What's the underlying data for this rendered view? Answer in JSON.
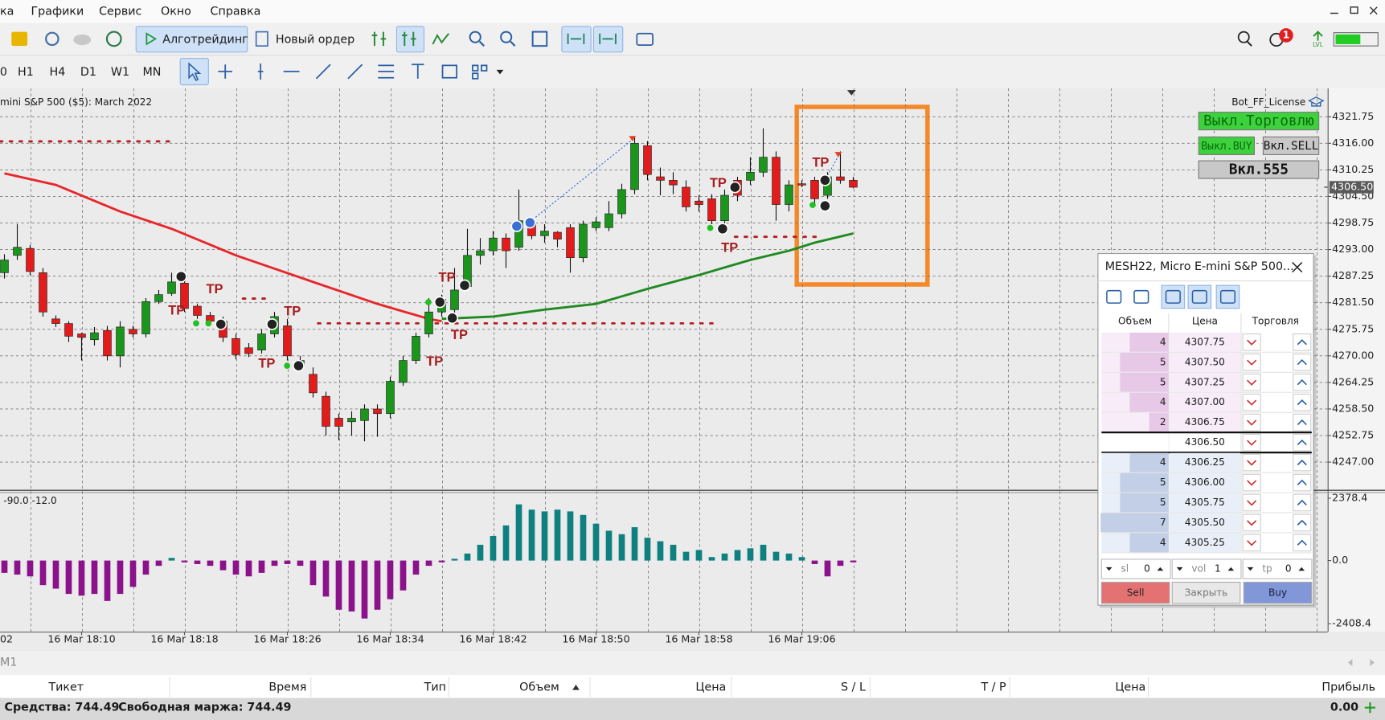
{
  "menu": [
    "ка",
    "Графики",
    "Сервис",
    "Окно",
    "Справка"
  ],
  "toolbar": {
    "algo": "Алготрейдинг",
    "new_order": "Новый ордер",
    "badge": "1",
    "lvl": "LVL"
  },
  "timeframes": [
    "0",
    "H1",
    "H4",
    "D1",
    "W1",
    "MN"
  ],
  "chart": {
    "type": "candlestick",
    "symbol": "mini S&P 500 ($5): March 2022",
    "ylim": [
      4240.9,
      4327.9
    ],
    "yticks": [
      4321.75,
      {
        "value": 4316,
        "label": "4316.00"
      },
      4310.25,
      {
        "value": 4304.5,
        "label": "4304.50"
      },
      4298.75,
      {
        "value": 4293,
        "label": "4293.00"
      },
      4287.25,
      {
        "value": 4281.5,
        "label": "4281.50"
      },
      4275.75,
      {
        "value": 4270,
        "label": "4270.00"
      },
      4264.25,
      {
        "value": 4258.5,
        "label": "4258.50"
      },
      4252.75,
      {
        "value": 4247,
        "label": "4247.00"
      }
    ],
    "current_price": {
      "value": 4306.5,
      "label": "4306.50"
    },
    "time_labels": [
      "02",
      "16 Mar 18:10",
      "16 Mar 18:18",
      "16 Mar 18:26",
      "16 Mar 18:34",
      "16 Mar 18:42",
      "16 Mar 18:50",
      "16 Mar 18:58",
      "16 Mar 19:06"
    ],
    "up_color": "#1a961a",
    "down_color": "#e31b1b",
    "candles": [
      [
        4288.0,
        4292.0,
        4286.75,
        4290.75
      ],
      [
        4291.75,
        4298.5,
        4290.75,
        4293.5
      ],
      [
        4293.25,
        4294.0,
        4287.5,
        4288.25
      ],
      [
        4288.0,
        4289.0,
        4278.5,
        4279.5
      ],
      [
        4278.0,
        4278.75,
        4276.25,
        4277.0
      ],
      [
        4277.0,
        4277.5,
        4273.0,
        4274.25
      ],
      [
        4274.75,
        4275.0,
        4269.0,
        4274.0
      ],
      [
        4273.5,
        4276.25,
        4272.25,
        4275.0
      ],
      [
        4275.5,
        4276.5,
        4269.0,
        4270.0
      ],
      [
        4270.0,
        4277.5,
        4267.5,
        4276.25
      ],
      [
        4275.75,
        4276.5,
        4274.0,
        4274.75
      ],
      [
        4274.75,
        4282.5,
        4274.0,
        4281.75
      ],
      [
        4281.75,
        4284.25,
        4281.25,
        4283.25
      ],
      [
        4283.5,
        4288.0,
        4283.0,
        4286.0
      ],
      [
        4285.75,
        4286.5,
        4279.5,
        4280.25
      ],
      [
        4280.75,
        4281.25,
        4278.0,
        4278.75
      ],
      [
        4278.75,
        4279.5,
        4276.5,
        4277.5
      ],
      [
        4277.5,
        4278.5,
        4273.0,
        4274.0
      ],
      [
        4273.75,
        4274.75,
        4269.25,
        4270.25
      ],
      [
        4271.75,
        4272.75,
        4269.75,
        4270.5
      ],
      [
        4271.25,
        4275.75,
        4270.5,
        4274.75
      ],
      [
        4274.75,
        4279.5,
        4274.0,
        4278.5
      ],
      [
        4276.5,
        4278.0,
        4269.0,
        4270.0
      ],
      [
        4267.75,
        4270.0,
        4266.75,
        4269.0
      ],
      [
        4266.0,
        4267.5,
        4261.0,
        4262.0
      ],
      [
        4261.25,
        4262.25,
        4252.75,
        4254.75
      ],
      [
        4256.5,
        4257.5,
        4251.75,
        4254.75
      ],
      [
        4255.75,
        4258.0,
        4252.75,
        4256.5
      ],
      [
        4256.0,
        4259.5,
        4251.5,
        4258.5
      ],
      [
        4258.5,
        4259.5,
        4252.5,
        4257.5
      ],
      [
        4257.5,
        4265.5,
        4256.5,
        4264.5
      ],
      [
        4264.25,
        4270.0,
        4263.5,
        4269.0
      ],
      [
        4269.0,
        4275.0,
        4268.25,
        4274.25
      ],
      [
        4274.75,
        4282.5,
        4274.0,
        4279.5
      ],
      [
        4279.5,
        4283.25,
        4278.5,
        4282.25
      ],
      [
        4280.0,
        4289.0,
        4277.0,
        4284.25
      ],
      [
        4285.0,
        4297.5,
        4284.25,
        4291.75
      ],
      [
        4291.75,
        4295.5,
        4289.75,
        4292.75
      ],
      [
        4292.75,
        4297.0,
        4291.75,
        4295.5
      ],
      [
        4295.5,
        4296.5,
        4289.0,
        4292.75
      ],
      [
        4293.5,
        4306.0,
        4292.75,
        4299.25
      ],
      [
        4298.5,
        4299.75,
        4295.25,
        4296.0
      ],
      [
        4296.0,
        4298.5,
        4294.5,
        4297.0
      ],
      [
        4296.75,
        4297.0,
        4293.5,
        4295.25
      ],
      [
        4297.75,
        4298.5,
        4288.0,
        4291.25
      ],
      [
        4291.25,
        4299.25,
        4290.25,
        4298.5
      ],
      [
        4297.75,
        4300.0,
        4297.0,
        4299.0
      ],
      [
        4297.75,
        4303.5,
        4297.0,
        4300.75
      ],
      [
        4300.75,
        4307.25,
        4299.75,
        4306.0
      ],
      [
        4306.0,
        4317.5,
        4305.0,
        4316.0
      ],
      [
        4315.5,
        4316.5,
        4308.0,
        4309.25
      ],
      [
        4308.75,
        4310.75,
        4304.75,
        4308.0
      ],
      [
        4308.0,
        4309.75,
        4305.0,
        4307.0
      ],
      [
        4306.5,
        4308.0,
        4301.25,
        4302.25
      ],
      [
        4303.5,
        4304.75,
        4301.25,
        4302.75
      ],
      [
        4304.0,
        4305.0,
        4298.5,
        4299.25
      ],
      [
        4299.25,
        4306.0,
        4297.5,
        4304.75
      ],
      [
        4308.0,
        4308.75,
        4303.5,
        4304.75
      ],
      [
        4308.0,
        4313.0,
        4307.0,
        4309.75
      ],
      [
        4309.75,
        4319.25,
        4308.75,
        4313.0
      ],
      [
        4313.0,
        4314.25,
        4299.25,
        4302.75
      ],
      [
        4302.75,
        4308.0,
        4301.25,
        4307.0
      ],
      [
        4307.25,
        4308.0,
        4306.5,
        4307.0
      ],
      [
        4308.0,
        4308.75,
        4302.75,
        4304.0
      ],
      [
        4304.75,
        4309.75,
        4304.0,
        4308.75
      ],
      [
        4308.75,
        4314.25,
        4307.25,
        4308.0
      ],
      [
        4308.0,
        4308.75,
        4306.25,
        4306.5
      ]
    ],
    "ma_red": {
      "color": "#e8262a",
      "x": [
        0,
        4,
        9,
        13,
        18,
        24,
        29,
        33,
        34
      ],
      "values": [
        4309.5,
        4307.0,
        4301.25,
        4297.5,
        4291.75,
        4286.0,
        4281.25,
        4278.0,
        4277.5
      ]
    },
    "ma_green": {
      "color": "#1f8a1f",
      "x": [
        34,
        38,
        42,
        46,
        50,
        54,
        58,
        61,
        63,
        66
      ],
      "values": [
        4278.0,
        4278.5,
        4280.0,
        4281.25,
        4284.5,
        4287.5,
        4290.75,
        4292.75,
        4294.5,
        4296.5
      ]
    },
    "tp_labels": [
      "TP",
      "TP",
      "TP",
      "TP",
      "TP",
      "TP",
      "TP",
      "TP",
      "TP",
      "TP"
    ]
  },
  "oscillator": {
    "type": "bar",
    "label": "-90.0 -12.0",
    "ylim": [
      -2713,
      2579
    ],
    "yticks": [
      2378.4,
      {
        "value": 0,
        "label": "0.0"
      },
      -2408.4
    ],
    "up_color": "#0f8080",
    "down_color": "#8b128b",
    "values": [
      -469,
      -536,
      -603,
      -938,
      -1072,
      -1273,
      -1340,
      -1273,
      -1541,
      -1273,
      -1005,
      -536,
      -201,
      101,
      -67,
      -134,
      -201,
      -369,
      -536,
      -603,
      -469,
      -201,
      -134,
      -201,
      -938,
      -1374,
      -1876,
      -1943,
      -2211,
      -1876,
      -1474,
      -1139,
      -536,
      -201,
      -67,
      67,
      268,
      603,
      938,
      1340,
      2144,
      1943,
      1876,
      1943,
      1876,
      1742,
      1407,
      1139,
      1005,
      1273,
      871,
      737,
      603,
      335,
      402,
      134,
      268,
      402,
      469,
      603,
      335,
      268,
      134,
      -134,
      -603,
      -201,
      -67
    ]
  },
  "bot_panel": {
    "title": "Bot_FF_License",
    "buttons": [
      "Выкл.Торговлю",
      "Выкл.BUY",
      "Вкл.SELL",
      "Вкл.555"
    ]
  },
  "dom": {
    "title": "MESH22, Micro E-mini S&P 500...",
    "headers": [
      "Объем",
      "Цена",
      "Торговля"
    ],
    "rows": [
      {
        "volume": 4,
        "price": "4307.75",
        "side": "sell"
      },
      {
        "volume": 5,
        "price": "4307.50",
        "side": "sell"
      },
      {
        "volume": 5,
        "price": "4307.25",
        "side": "sell"
      },
      {
        "volume": 4,
        "price": "4307.00",
        "side": "sell"
      },
      {
        "volume": 2,
        "price": "4306.75",
        "side": "sell"
      },
      {
        "volume": null,
        "price": "4306.50",
        "side": "last"
      },
      {
        "volume": 4,
        "price": "4306.25",
        "side": "buy"
      },
      {
        "volume": 5,
        "price": "4306.00",
        "side": "buy"
      },
      {
        "volume": 5,
        "price": "4305.75",
        "side": "buy"
      },
      {
        "volume": 7,
        "price": "4305.50",
        "side": "buy"
      },
      {
        "volume": 4,
        "price": "4305.25",
        "side": "buy"
      }
    ],
    "controls": [
      {
        "label": "sl",
        "value": 0
      },
      {
        "label": "vol",
        "value": 1
      },
      {
        "label": "tp",
        "value": 0
      }
    ],
    "buttons": [
      "Sell",
      "Закрыть",
      "Buy"
    ]
  },
  "bottom": {
    "tab": "M1",
    "headers": [
      "Тикет",
      "Время",
      "Тип",
      "Объем",
      "Цена",
      "S / L",
      "T / P",
      "Цена",
      "Прибыль"
    ],
    "equity": "Средства: 744.49",
    "free_margin": "Свободная маржа: 744.49",
    "profit": "0.00"
  }
}
